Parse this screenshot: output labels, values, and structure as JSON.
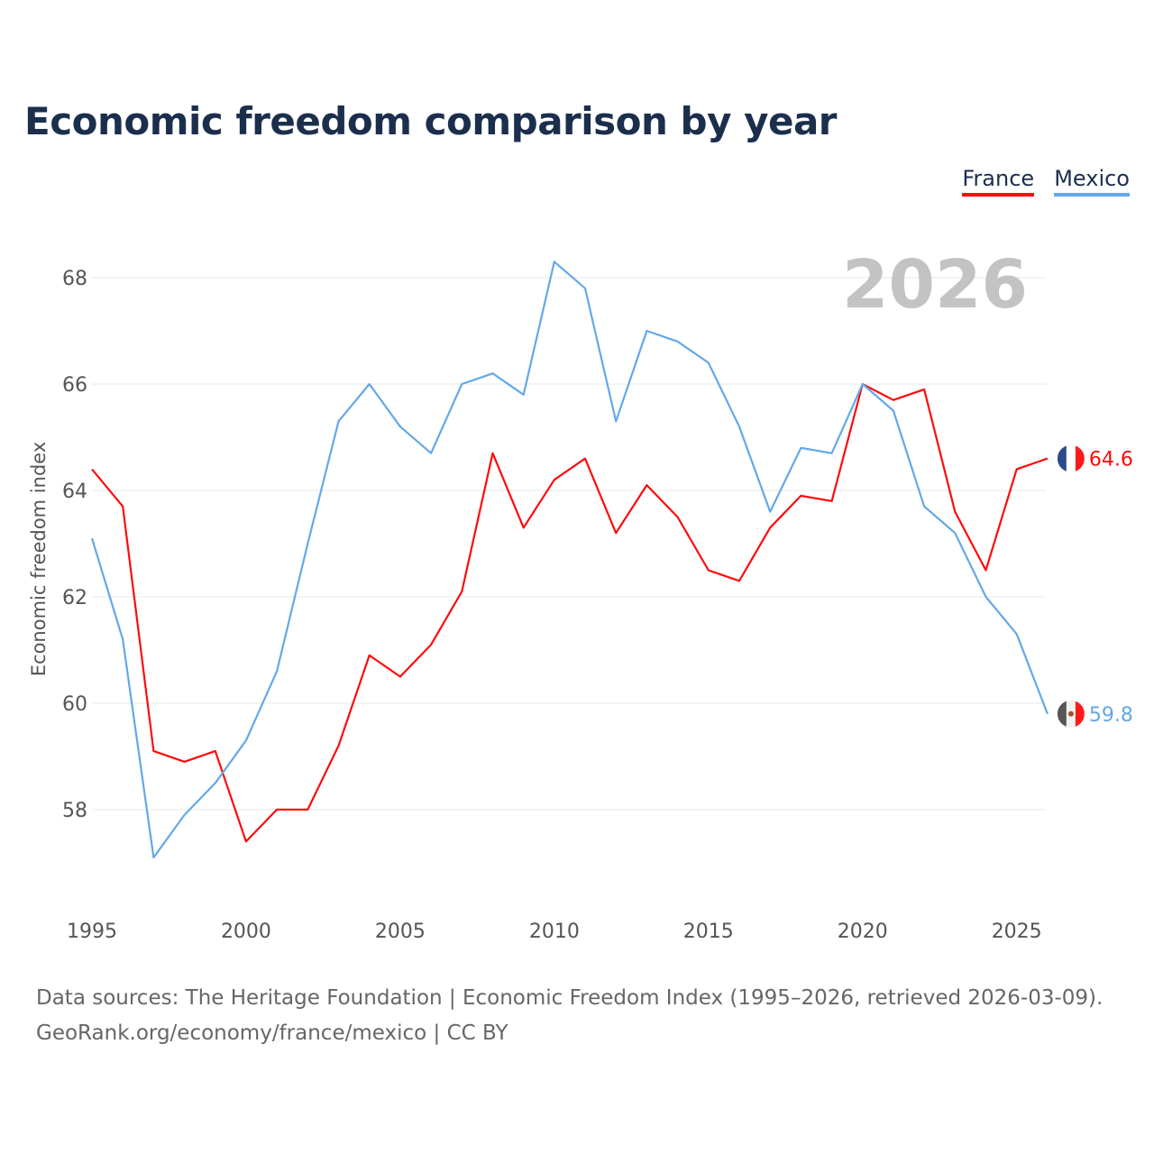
{
  "chart_data": {
    "type": "line",
    "title": "Economic freedom comparison by year",
    "xlabel": "",
    "ylabel": "Economic freedom index",
    "year_label": "2026",
    "xlim": [
      1995,
      2026
    ],
    "ylim": [
      56.5,
      69
    ],
    "yticks": [
      58,
      60,
      62,
      64,
      66,
      68
    ],
    "xticks": [
      1995,
      2000,
      2005,
      2010,
      2015,
      2020,
      2025
    ],
    "grid": true,
    "legend_position": "top-right",
    "x": [
      1995,
      1996,
      1997,
      1998,
      1999,
      2000,
      2001,
      2002,
      2003,
      2004,
      2005,
      2006,
      2007,
      2008,
      2009,
      2010,
      2011,
      2012,
      2013,
      2014,
      2015,
      2016,
      2017,
      2018,
      2019,
      2020,
      2021,
      2022,
      2023,
      2024,
      2025,
      2026
    ],
    "series": [
      {
        "name": "France",
        "color": "#ff0a0a",
        "end_label": "64.6",
        "values": [
          64.4,
          63.7,
          59.1,
          58.9,
          59.1,
          57.4,
          58.0,
          58.0,
          59.2,
          60.9,
          60.5,
          61.1,
          62.1,
          64.7,
          63.3,
          64.2,
          64.6,
          63.2,
          64.1,
          63.5,
          62.5,
          62.3,
          63.3,
          63.9,
          63.8,
          66.0,
          65.7,
          65.9,
          63.6,
          62.5,
          64.4,
          64.6
        ]
      },
      {
        "name": "Mexico",
        "color": "#63a8e8",
        "end_label": "59.8",
        "values": [
          63.1,
          61.2,
          57.1,
          57.9,
          58.5,
          59.3,
          60.6,
          63.0,
          65.3,
          66.0,
          65.2,
          64.7,
          66.0,
          66.2,
          65.8,
          68.3,
          67.8,
          65.3,
          67.0,
          66.8,
          66.4,
          65.2,
          63.6,
          64.8,
          64.7,
          66.0,
          65.5,
          63.7,
          63.2,
          62.0,
          61.3,
          59.8
        ]
      }
    ]
  },
  "footer": {
    "line1": "Data sources: The Heritage Foundation | Economic Freedom Index (1995–2026, retrieved 2026-03-09).",
    "line2": "GeoRank.org/economy/france/mexico | CC BY"
  }
}
